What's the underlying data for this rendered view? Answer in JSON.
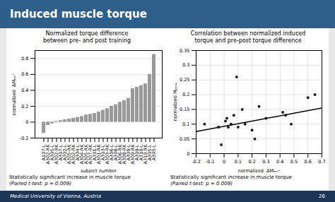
{
  "title": "Induced muscle torque",
  "annotations": [
    "Medical University of Vienna, Austria",
    "26"
  ],
  "chart_data": [
    {
      "type": "bar",
      "title": "Normalized torque difference\nbetween pre- and post training",
      "xlabel": "subject number",
      "ylabel": "normalized  ΔMₘᵥᶜ",
      "categories": [
        "A107-L",
        "A302-RK",
        "A305-L",
        "A302-RK",
        "A307-L",
        "A302-L",
        "A305-RK",
        "A302-RK",
        "A304-L",
        "A304-RK",
        "A305-RK",
        "A307-RK",
        "A301-L",
        "A301-RK",
        "A303-L",
        "A303-RK",
        "A306-L",
        "A308-L",
        "A306-RK",
        "A308-RK",
        "A309-L",
        "A309-RK",
        "A309-L",
        "A310-L",
        "A310-RK",
        "A305-L",
        "A305-L"
      ],
      "values": [
        -0.14,
        -0.04,
        -0.02,
        0.01,
        0.02,
        0.03,
        0.04,
        0.05,
        0.06,
        0.07,
        0.09,
        0.1,
        0.11,
        0.13,
        0.15,
        0.17,
        0.2,
        0.22,
        0.25,
        0.27,
        0.3,
        0.42,
        0.44,
        0.46,
        0.48,
        0.6,
        0.85
      ],
      "color": "#999999",
      "ylim": [
        -0.2,
        0.9
      ],
      "yticks": [
        -0.2,
        0,
        0.2,
        0.4,
        0.6,
        0.8
      ],
      "grid": true,
      "annotations": [
        "Statistically significant increase in muscle torque",
        "(Paired t-test: p = 0.009)"
      ]
    },
    {
      "type": "scatter",
      "title": "Correlation between normalized induced\ntorque and pre-post torque difference",
      "xlabel": "normalized  ΔMₘᵥᶜ",
      "ylabel": "normalized Mₚᵣₑₐ",
      "series": [
        {
          "type": "scatter",
          "color": "#222222",
          "x": [
            -0.14,
            -0.04,
            -0.02,
            0.01,
            0.02,
            0.03,
            0.05,
            0.07,
            0.09,
            0.1,
            0.13,
            0.15,
            0.2,
            0.22,
            0.25,
            0.3,
            0.42,
            0.44,
            0.48,
            0.6,
            0.65
          ],
          "values": [
            0.1,
            0.09,
            0.03,
            0.11,
            0.12,
            0.09,
            0.1,
            0.13,
            0.26,
            0.09,
            0.15,
            0.1,
            0.08,
            0.05,
            0.16,
            0.12,
            0.14,
            0.13,
            0.1,
            0.19,
            0.2
          ]
        },
        {
          "type": "line",
          "color": "black",
          "x": [
            -0.2,
            0.7
          ],
          "values": [
            0.075,
            0.155
          ]
        }
      ],
      "xlim": [
        -0.2,
        0.7
      ],
      "ylim": [
        0,
        0.35
      ],
      "xticks": [
        -0.2,
        -0.1,
        0,
        0.1,
        0.2,
        0.3,
        0.4,
        0.5,
        0.6,
        0.7
      ],
      "yticks": [
        0,
        0.05,
        0.1,
        0.15,
        0.2,
        0.25,
        0.3,
        0.35
      ],
      "grid": true,
      "annotations": [
        "Statistically significant increase in muscle torque",
        "(Paired t-test: p = 0.009)"
      ]
    }
  ]
}
